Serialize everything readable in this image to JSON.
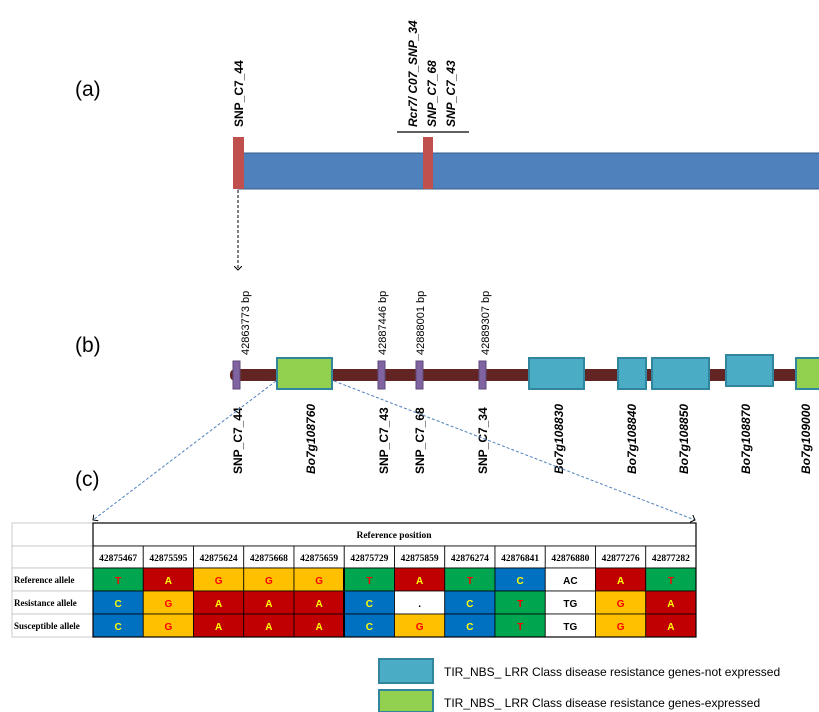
{
  "panel_labels": {
    "a": "(a)",
    "b": "(b)",
    "c": "(c)"
  },
  "panel_a": {
    "left_marker": "SNP_C7_44",
    "cluster_markers": [
      "Rcr7/ C07_SNP_34",
      "SNP_C7_68",
      "SNP_C7_43"
    ]
  },
  "panel_b": {
    "positions": [
      "42863773 bp",
      "42887446 bp",
      "42888001 bp",
      "42889307 bp"
    ],
    "features": [
      {
        "label": "SNP_C7_44",
        "kind": "snp"
      },
      {
        "label": "Bo7g108760",
        "kind": "gene-expressed"
      },
      {
        "label": "SNP_C7_43",
        "kind": "snp"
      },
      {
        "label": "SNP_C7_68",
        "kind": "snp"
      },
      {
        "label": "SNP_C7_34",
        "kind": "snp"
      },
      {
        "label": "Bo7g108830",
        "kind": "gene-not-expressed"
      },
      {
        "label": "Bo7g108840",
        "kind": "gene-not-expressed"
      },
      {
        "label": "Bo7g108850",
        "kind": "gene-not-expressed"
      },
      {
        "label": "Bo7g108870",
        "kind": "gene-not-expressed"
      },
      {
        "label": "Bo7g109000",
        "kind": "gene-expressed"
      }
    ]
  },
  "table": {
    "header": "Reference position",
    "positions": [
      "42875467",
      "42875595",
      "42875624",
      "42875668",
      "42875659",
      "42875729",
      "42875859",
      "42876274",
      "42876841",
      "42876880",
      "42877276",
      "42877282"
    ],
    "rows": [
      {
        "label": "Reference allele",
        "alleles": [
          "T",
          "A",
          "G",
          "G",
          "G",
          "T",
          "A",
          "T",
          "C",
          "AC",
          "A",
          "T"
        ]
      },
      {
        "label": "Resistance allele",
        "alleles": [
          "C",
          "G",
          "A",
          "A",
          "A",
          "C",
          ".",
          "C",
          "T",
          "TG",
          "G",
          "A"
        ]
      },
      {
        "label": "Susceptible allele",
        "alleles": [
          "C",
          "G",
          "A",
          "A",
          "A",
          "C",
          "G",
          "C",
          "T",
          "TG",
          "G",
          "A"
        ]
      }
    ]
  },
  "allele_colors": {
    "T": "#00a550",
    "A": "#c00000",
    "G": "#ffc000",
    "C": "#0070c0",
    "dot": "#ffffff",
    "multi": "#ffffff",
    "letter_on_green": "#ff0000",
    "letter_on_red": "#ffff00",
    "letter_on_yellow": "#ff0000",
    "letter_on_blue": "#ffff00",
    "letter_on_white": "#000000"
  },
  "colors": {
    "chromosome_bar": "#4f81bd",
    "marker_red": "#c0504d",
    "backbone": "#632523",
    "snp_purple": "#8064a2",
    "gene_not_expressed": "#4bacc6",
    "gene_expressed": "#92d050",
    "dashed_blue": "#4f81bd"
  },
  "legend": [
    {
      "label": "TIR_NBS_ LRR Class disease resistance genes-not expressed",
      "kind": "gene-not-expressed"
    },
    {
      "label": "TIR_NBS_ LRR Class disease resistance genes-expressed",
      "kind": "gene-expressed"
    }
  ]
}
